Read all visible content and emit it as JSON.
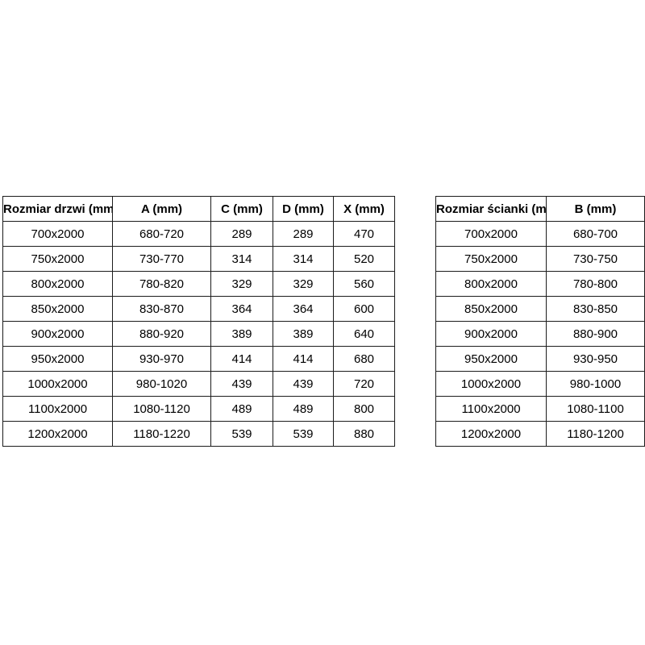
{
  "door_table": {
    "title": "Rozmiar drzwi",
    "headers": [
      "Rozmiar drzwi (mm)",
      "A (mm)",
      "C (mm)",
      "D (mm)",
      "X (mm)"
    ],
    "rows": [
      [
        "700x2000",
        "680-720",
        "289",
        "289",
        "470"
      ],
      [
        "750x2000",
        "730-770",
        "314",
        "314",
        "520"
      ],
      [
        "800x2000",
        "780-820",
        "329",
        "329",
        "560"
      ],
      [
        "850x2000",
        "830-870",
        "364",
        "364",
        "600"
      ],
      [
        "900x2000",
        "880-920",
        "389",
        "389",
        "640"
      ],
      [
        "950x2000",
        "930-970",
        "414",
        "414",
        "680"
      ],
      [
        "1000x2000",
        "980-1020",
        "439",
        "439",
        "720"
      ],
      [
        "1100x2000",
        "1080-1120",
        "489",
        "489",
        "800"
      ],
      [
        "1200x2000",
        "1180-1220",
        "539",
        "539",
        "880"
      ]
    ]
  },
  "wall_table": {
    "title": "Rozmiar ścianki",
    "headers": [
      "Rozmiar ścianki (mm)",
      "B (mm)"
    ],
    "rows": [
      [
        "700x2000",
        "680-700"
      ],
      [
        "750x2000",
        "730-750"
      ],
      [
        "800x2000",
        "780-800"
      ],
      [
        "850x2000",
        "830-850"
      ],
      [
        "900x2000",
        "880-900"
      ],
      [
        "950x2000",
        "930-950"
      ],
      [
        "1000x2000",
        "980-1000"
      ],
      [
        "1100x2000",
        "1080-1100"
      ],
      [
        "1200x2000",
        "1180-1200"
      ]
    ]
  },
  "colors": {
    "background": "#ffffff",
    "border": "#1c1c1c",
    "text": "#000000"
  }
}
